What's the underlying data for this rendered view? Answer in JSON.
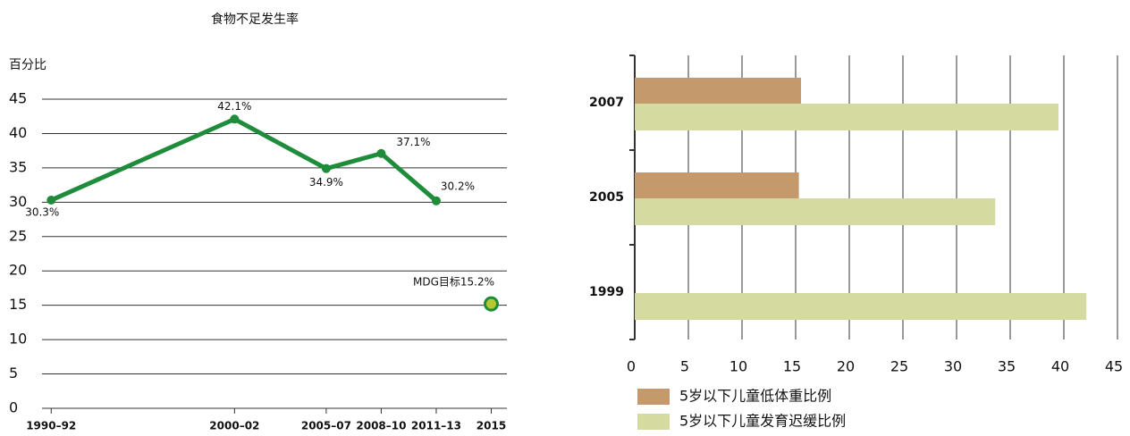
{
  "chart_data": [
    {
      "type": "line",
      "title": "食物不足发生率",
      "y_label": "百分比",
      "x": [
        1991,
        2001,
        2006,
        2009,
        2012
      ],
      "xlim": [
        1990.5,
        2016
      ],
      "xticks": [
        {
          "value": 1991,
          "label": "1990–92"
        },
        {
          "value": 2001,
          "label": "2000–02"
        },
        {
          "value": 2006,
          "label": "2005–07"
        },
        {
          "value": 2009,
          "label": "2008–10"
        },
        {
          "value": 2012,
          "label": "2011–13"
        },
        2015
      ],
      "ylim": [
        0,
        45
      ],
      "yticks": [
        0,
        5,
        10,
        15,
        20,
        25,
        30,
        35,
        40,
        45
      ],
      "grid": true,
      "series": [
        {
          "color": "#1e8c3a",
          "values": [
            30.3,
            42.1,
            34.9,
            37.1,
            30.2
          ],
          "value_labels": [
            "30.3%",
            "42.1%",
            "34.9%",
            "37.1%",
            "30.2%"
          ]
        }
      ],
      "target": {
        "x": 2015,
        "value": 15.2,
        "label": "MDG目标15.2%",
        "color": "#b8c830"
      }
    },
    {
      "type": "bar",
      "orientation": "horizontal",
      "categories": [
        "2007",
        "2005",
        "1999"
      ],
      "xlim": [
        0,
        45
      ],
      "xticks": [
        0,
        5,
        10,
        15,
        20,
        25,
        30,
        35,
        40,
        45
      ],
      "grid": true,
      "series": [
        {
          "name": "5岁以下儿童低体重比例",
          "color": "#c49a6c",
          "values": [
            15.5,
            15.3,
            null
          ]
        },
        {
          "name": "5岁以下儿童发育迟缓比例",
          "color": "#d5dba0",
          "values": [
            39.5,
            33.6,
            42.1
          ]
        }
      ]
    }
  ]
}
